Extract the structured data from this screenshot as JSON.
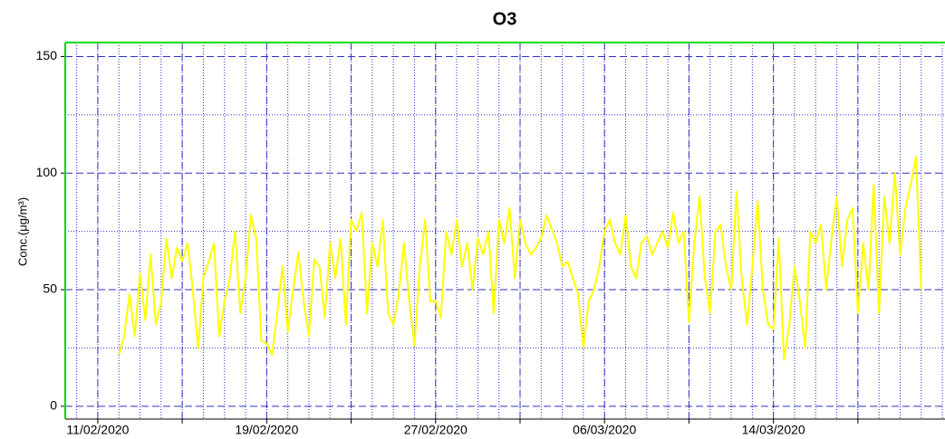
{
  "chart_data": {
    "type": "line",
    "title": "O3",
    "y_label": "Conc.(μg/m³)",
    "xlim": [
      "09/02/2020 11:00",
      "22/03/2020 03:00"
    ],
    "xticks": [
      "11/02/2020",
      "19/02/2020",
      "27/02/2020",
      "06/03/2020",
      "14/03/2020"
    ],
    "xminor_ticks": [
      "15/02/2020",
      "23/02/2020",
      "02/03/2020",
      "10/03/2020",
      "18/03/2020"
    ],
    "ylim": [
      -5.5,
      156
    ],
    "yticks": [
      0,
      50,
      100,
      150
    ],
    "yminor_ticks": [
      25,
      75,
      125
    ],
    "grid": true,
    "grid_color": "#3030c8",
    "frame_color": "#00dd00",
    "series": [
      {
        "name": "O3",
        "color": "#ffff00",
        "x": [
          "12/02/2020 00:00",
          "12/02/2020 06:00",
          "12/02/2020 12:00",
          "12/02/2020 18:00",
          "13/02/2020 00:00",
          "13/02/2020 06:00",
          "13/02/2020 12:00",
          "13/02/2020 18:00",
          "14/02/2020 00:00",
          "14/02/2020 06:00",
          "14/02/2020 12:00",
          "14/02/2020 18:00",
          "15/02/2020 00:00",
          "15/02/2020 06:00",
          "15/02/2020 12:00",
          "15/02/2020 18:00",
          "16/02/2020 00:00",
          "16/02/2020 06:00",
          "16/02/2020 12:00",
          "16/02/2020 18:00",
          "17/02/2020 00:00",
          "17/02/2020 06:00",
          "17/02/2020 12:00",
          "17/02/2020 18:00",
          "18/02/2020 00:00",
          "18/02/2020 06:00",
          "18/02/2020 12:00",
          "18/02/2020 18:00",
          "19/02/2020 00:00",
          "19/02/2020 06:00",
          "19/02/2020 12:00",
          "19/02/2020 18:00",
          "20/02/2020 00:00",
          "20/02/2020 06:00",
          "20/02/2020 12:00",
          "20/02/2020 18:00",
          "21/02/2020 00:00",
          "21/02/2020 06:00",
          "21/02/2020 12:00",
          "21/02/2020 18:00",
          "22/02/2020 00:00",
          "22/02/2020 06:00",
          "22/02/2020 12:00",
          "22/02/2020 18:00",
          "23/02/2020 00:00",
          "23/02/2020 06:00",
          "23/02/2020 12:00",
          "23/02/2020 18:00",
          "24/02/2020 00:00",
          "24/02/2020 06:00",
          "24/02/2020 12:00",
          "24/02/2020 18:00",
          "25/02/2020 00:00",
          "25/02/2020 06:00",
          "25/02/2020 12:00",
          "25/02/2020 18:00",
          "26/02/2020 00:00",
          "26/02/2020 06:00",
          "26/02/2020 12:00",
          "26/02/2020 18:00",
          "27/02/2020 00:00",
          "27/02/2020 06:00",
          "27/02/2020 12:00",
          "27/02/2020 18:00",
          "28/02/2020 00:00",
          "28/02/2020 06:00",
          "28/02/2020 12:00",
          "28/02/2020 18:00",
          "29/02/2020 00:00",
          "29/02/2020 06:00",
          "29/02/2020 12:00",
          "29/02/2020 18:00",
          "01/03/2020 00:00",
          "01/03/2020 06:00",
          "01/03/2020 12:00",
          "01/03/2020 18:00",
          "02/03/2020 00:00",
          "02/03/2020 06:00",
          "02/03/2020 12:00",
          "02/03/2020 18:00",
          "03/03/2020 00:00",
          "03/03/2020 06:00",
          "03/03/2020 12:00",
          "03/03/2020 18:00",
          "04/03/2020 00:00",
          "04/03/2020 06:00",
          "04/03/2020 12:00",
          "04/03/2020 18:00",
          "05/03/2020 00:00",
          "05/03/2020 06:00",
          "05/03/2020 12:00",
          "05/03/2020 18:00",
          "06/03/2020 00:00",
          "06/03/2020 06:00",
          "06/03/2020 12:00",
          "06/03/2020 18:00",
          "07/03/2020 00:00",
          "07/03/2020 06:00",
          "07/03/2020 12:00",
          "07/03/2020 18:00",
          "08/03/2020 00:00",
          "08/03/2020 06:00",
          "08/03/2020 12:00",
          "08/03/2020 18:00",
          "09/03/2020 00:00",
          "09/03/2020 06:00",
          "09/03/2020 12:00",
          "09/03/2020 18:00",
          "10/03/2020 00:00",
          "10/03/2020 06:00",
          "10/03/2020 12:00",
          "10/03/2020 18:00",
          "11/03/2020 00:00",
          "11/03/2020 06:00",
          "11/03/2020 12:00",
          "11/03/2020 18:00",
          "12/03/2020 00:00",
          "12/03/2020 06:00",
          "12/03/2020 12:00",
          "12/03/2020 18:00",
          "13/03/2020 00:00",
          "13/03/2020 06:00",
          "13/03/2020 12:00",
          "13/03/2020 18:00",
          "14/03/2020 00:00",
          "14/03/2020 06:00",
          "14/03/2020 12:00",
          "14/03/2020 18:00",
          "15/03/2020 00:00",
          "15/03/2020 06:00",
          "15/03/2020 12:00",
          "15/03/2020 18:00",
          "16/03/2020 00:00",
          "16/03/2020 06:00",
          "16/03/2020 12:00",
          "16/03/2020 18:00",
          "17/03/2020 00:00",
          "17/03/2020 06:00",
          "17/03/2020 12:00",
          "17/03/2020 18:00",
          "18/03/2020 00:00",
          "18/03/2020 06:00",
          "18/03/2020 12:00",
          "18/03/2020 18:00",
          "19/03/2020 00:00",
          "19/03/2020 06:00",
          "19/03/2020 12:00",
          "19/03/2020 18:00",
          "20/03/2020 00:00",
          "20/03/2020 06:00",
          "20/03/2020 12:00",
          "20/03/2020 18:00",
          "21/03/2020 00:00"
        ],
        "values": [
          22,
          30,
          48,
          30,
          57,
          37,
          65,
          35,
          45,
          72,
          55,
          68,
          62,
          70,
          50,
          25,
          55,
          62,
          70,
          30,
          45,
          55,
          75,
          40,
          55,
          82,
          72,
          28,
          27,
          22,
          40,
          60,
          32,
          50,
          66,
          45,
          30,
          63,
          60,
          38,
          70,
          55,
          72,
          35,
          80,
          75,
          83,
          40,
          70,
          60,
          80,
          40,
          35,
          48,
          70,
          45,
          26,
          60,
          80,
          45,
          45,
          38,
          75,
          65,
          80,
          60,
          70,
          50,
          72,
          65,
          75,
          40,
          80,
          70,
          85,
          55,
          80,
          70,
          65,
          68,
          72,
          82,
          76,
          70,
          60,
          62,
          55,
          48,
          25,
          45,
          50,
          60,
          75,
          80,
          70,
          65,
          82,
          60,
          55,
          70,
          73,
          65,
          70,
          75,
          68,
          83,
          70,
          75,
          36,
          70,
          90,
          55,
          40,
          75,
          78,
          60,
          50,
          92,
          55,
          35,
          60,
          88,
          50,
          35,
          33,
          72,
          20,
          35,
          60,
          45,
          25,
          75,
          70,
          78,
          50,
          72,
          90,
          60,
          80,
          85,
          40,
          70,
          50,
          95,
          40,
          90,
          70,
          100,
          65,
          85,
          95,
          107,
          50
        ]
      }
    ]
  }
}
